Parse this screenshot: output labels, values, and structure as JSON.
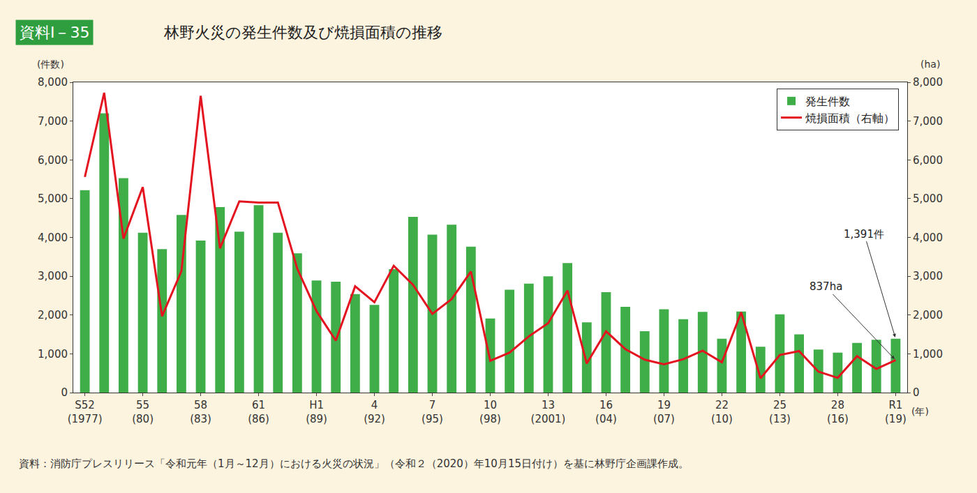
{
  "chart_data": {
    "type": "bar",
    "figure_label": "資料Ⅰ－35",
    "title": "林野火災の発生件数及び焼損面積の推移",
    "ylabel": "(件数)",
    "y2label": "(ha)",
    "xlabel": "(年)",
    "source": "資料：消防庁プレスリリース「令和元年（1月～12月）における火災の状況」（令和２（2020）年10月15日付け）を基に林野庁企画課作成。",
    "categories": [
      "S52\n(1977)",
      null,
      null,
      "55\n(80)",
      null,
      null,
      "58\n(83)",
      null,
      null,
      "61\n(86)",
      null,
      null,
      "H1\n(89)",
      null,
      null,
      "4\n(92)",
      null,
      null,
      "7\n(95)",
      null,
      null,
      "10\n(98)",
      null,
      null,
      "13\n(2001)",
      null,
      null,
      "16\n(04)",
      null,
      null,
      "19\n(07)",
      null,
      null,
      "22\n(10)",
      null,
      null,
      "25\n(13)",
      null,
      null,
      "28\n(16)",
      null,
      null,
      "R1\n(19)"
    ],
    "series": [
      {
        "name": "発生件数",
        "type": "bar",
        "color": "#3fae49",
        "values": [
          5220,
          7200,
          5530,
          4120,
          3700,
          4580,
          3920,
          4780,
          4150,
          4830,
          4120,
          3590,
          2890,
          2860,
          2540,
          2260,
          3180,
          4530,
          4070,
          4330,
          3760,
          1910,
          2650,
          2810,
          3000,
          3340,
          1810,
          2590,
          2210,
          1580,
          2150,
          1890,
          2080,
          1390,
          2090,
          1180,
          2020,
          1500,
          1110,
          1030,
          1280,
          1360,
          1391
        ]
      },
      {
        "name": "焼損面積（右軸）",
        "type": "line",
        "axis": "y2",
        "color": "#e3141f",
        "values": [
          5560,
          7730,
          3970,
          5300,
          1970,
          3130,
          7650,
          3720,
          4930,
          4900,
          4900,
          3200,
          2100,
          1340,
          2740,
          2330,
          3270,
          2780,
          2030,
          2410,
          3120,
          820,
          1030,
          1450,
          1790,
          2630,
          750,
          1580,
          1120,
          850,
          730,
          860,
          1080,
          780,
          2070,
          370,
          970,
          1070,
          540,
          380,
          940,
          610,
          837
        ]
      }
    ],
    "annotations": [
      {
        "text": "1,391件",
        "series": "発生件数"
      },
      {
        "text": "837ha",
        "series": "焼損面積（右軸）"
      }
    ],
    "ylim": [
      0,
      8000
    ],
    "yticks": [
      0,
      {
        "value": 1000,
        "label": "1,000"
      },
      {
        "value": 2000,
        "label": "2,000"
      },
      {
        "value": 3000,
        "label": "3,000"
      },
      {
        "value": 4000,
        "label": "4,000"
      },
      {
        "value": 5000,
        "label": "5,000"
      },
      {
        "value": 6000,
        "label": "6,000"
      },
      {
        "value": 7000,
        "label": "7,000"
      },
      {
        "value": 8000,
        "label": "8,000"
      }
    ],
    "y2lim": [
      0,
      8000
    ],
    "y2ticks": [
      0,
      {
        "value": 1000,
        "label": "1,000"
      },
      {
        "value": 2000,
        "label": "2,000"
      },
      {
        "value": 3000,
        "label": "3,000"
      },
      {
        "value": 4000,
        "label": "4,000"
      },
      {
        "value": 5000,
        "label": "5,000"
      },
      {
        "value": 6000,
        "label": "6,000"
      },
      {
        "value": 7000,
        "label": "7,000"
      },
      {
        "value": 8000,
        "label": "8,000"
      }
    ],
    "grid": false,
    "legend": "upper right"
  }
}
